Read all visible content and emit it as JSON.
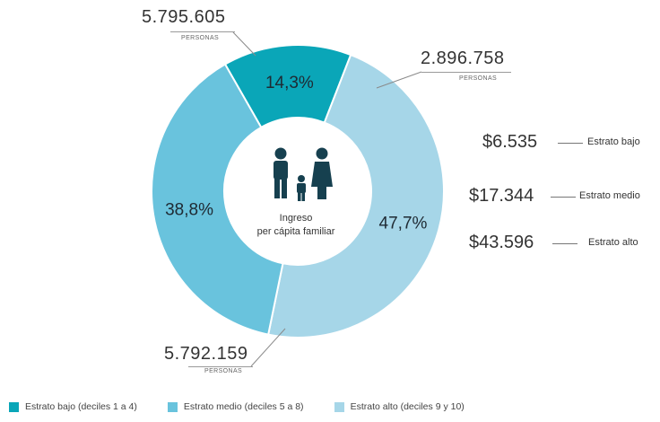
{
  "chart_data": {
    "type": "pie",
    "donut": true,
    "slices": [
      {
        "label": "Estrato bajo (deciles 1 a 4)",
        "value": 14.3,
        "display": "14,3%",
        "color": "#0aa6b8",
        "text_color": "#1f2a33"
      },
      {
        "label": "Estrato alto (deciles 9 y 10)",
        "value": 47.7,
        "display": "47,7%",
        "color": "#a6d6e8",
        "text_color": "#1f2a33"
      },
      {
        "label": "Estrato medio (deciles 5 a 8)",
        "value": 38.8,
        "display": "38,8%",
        "color": "#69c3dd",
        "text_color": "#1f2a33"
      }
    ],
    "center_label": [
      "Ingreso",
      "per cápita familiar"
    ],
    "center_icon": "family-icon",
    "population_labels": [
      {
        "value": "5.795.605",
        "unit": "PERSONAS"
      },
      {
        "value": "2.896.758",
        "unit": "PERSONAS"
      },
      {
        "value": "5.792.159",
        "unit": "PERSONAS"
      }
    ],
    "income_labels": [
      {
        "amount": "$6.535",
        "stratum": "Estrato bajo"
      },
      {
        "amount": "$17.344",
        "stratum": "Estrato medio"
      },
      {
        "amount": "$43.596",
        "stratum": "Estrato alto"
      }
    ],
    "legend": [
      {
        "label": "Estrato bajo (deciles 1 a 4)",
        "color": "#0aa6b8"
      },
      {
        "label": "Estrato medio (deciles 5 a 8)",
        "color": "#69c3dd"
      },
      {
        "label": "Estrato alto (deciles 9 y 10)",
        "color": "#a6d6e8"
      }
    ]
  }
}
